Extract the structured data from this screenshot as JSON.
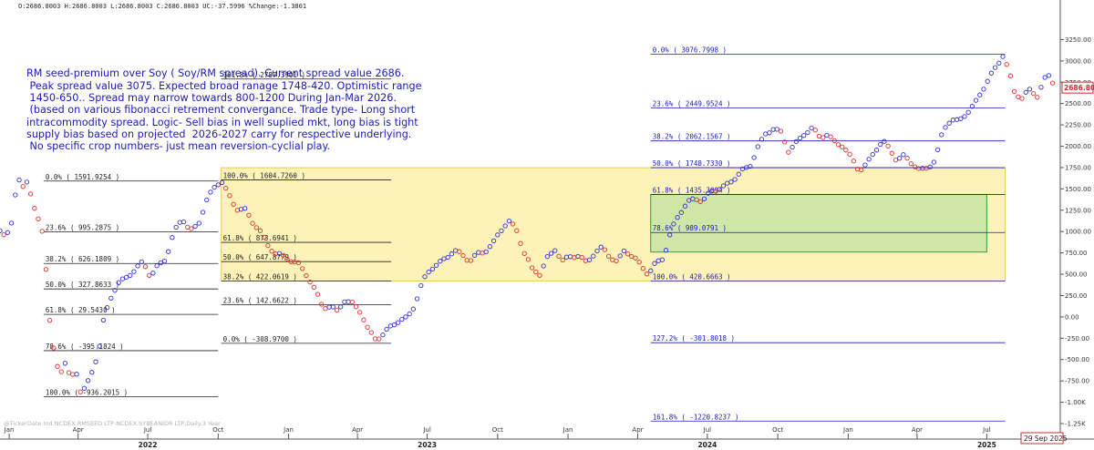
{
  "header": {
    "ohlc_readout": "O:2686.8003  H:2686.8003  L:2686.8003  C:2686.8003  UC:-37.5996  %Change:-1.3801"
  },
  "watermark": "@TickerDate.Ind.NCDEX.RMSEED LTP-NCDEX.SYBEANIDR LTP,Daily.3 Year",
  "annotation": {
    "lines": [
      "RM seed-premium over Soy ( Soy/RM spread). Current spread value 2686.",
      " Peak spread value 3075. Expected broad ranage 1748-420. Optimistic range",
      " 1450-650.. Spread may narrow towards 800-1200 During Jan-Mar 2026.",
      " (based on various fibonacci retrement convergance. Trade type- Long short",
      "intracommodity spread. Logic- Sell bias in well suplied mkt, long bias is tight",
      "supply bias based on projected  2026-2027 carry for respective underlying.",
      " No specific crop numbers- just mean reversion-cyclial play."
    ],
    "color": "#1a1ab8"
  },
  "chart_data": {
    "type": "scatter",
    "ylim": [
      -1250,
      3500
    ],
    "y_ticks": [
      {
        "value": 3250,
        "label": "3250.00"
      },
      {
        "value": 3000,
        "label": "3000.00"
      },
      {
        "value": 2750,
        "label": "2750.00"
      },
      {
        "value": 2500,
        "label": "2500.00"
      },
      {
        "value": 2250,
        "label": "2250.00"
      },
      {
        "value": 2000,
        "label": "2000.00"
      },
      {
        "value": 1750,
        "label": "1750.00"
      },
      {
        "value": 1500,
        "label": "1500.00"
      },
      {
        "value": 1250,
        "label": "1250.00"
      },
      {
        "value": 1000,
        "label": "1000.00"
      },
      {
        "value": 750,
        "label": "750.00"
      },
      {
        "value": 500,
        "label": "500.00"
      },
      {
        "value": 250,
        "label": "250.00"
      },
      {
        "value": 0,
        "label": "0.00"
      },
      {
        "value": -250,
        "label": "-250.00"
      },
      {
        "value": -500,
        "label": "-500.00"
      },
      {
        "value": -750,
        "label": "-750.00"
      },
      {
        "value": -1000,
        "label": "-1.00K"
      },
      {
        "value": -1250,
        "label": "-1.25K"
      }
    ],
    "x_range": [
      "2021-12-20",
      "2025-10-05"
    ],
    "x_ticks_month": [
      {
        "date": "2022-01-01",
        "label": "Jan"
      },
      {
        "date": "2022-04-01",
        "label": "Apr"
      },
      {
        "date": "2022-07-01",
        "label": "Jul"
      },
      {
        "date": "2022-10-01",
        "label": "Oct"
      },
      {
        "date": "2023-01-01",
        "label": "Jan"
      },
      {
        "date": "2023-04-01",
        "label": "Apr"
      },
      {
        "date": "2023-07-01",
        "label": "Jul"
      },
      {
        "date": "2023-10-01",
        "label": "Oct"
      },
      {
        "date": "2024-01-01",
        "label": "Jan"
      },
      {
        "date": "2024-04-01",
        "label": "Apr"
      },
      {
        "date": "2024-07-01",
        "label": "Jul"
      },
      {
        "date": "2024-10-01",
        "label": "Oct"
      },
      {
        "date": "2025-01-01",
        "label": "Jan"
      },
      {
        "date": "2025-04-01",
        "label": "Apr"
      },
      {
        "date": "2025-07-01",
        "label": "Jul"
      }
    ],
    "x_ticks_year": [
      {
        "date": "2022-07-01",
        "label": "2022"
      },
      {
        "date": "2023-07-01",
        "label": "2023"
      },
      {
        "date": "2024-07-01",
        "label": "2024"
      },
      {
        "date": "2025-07-01",
        "label": "2025"
      }
    ],
    "last_value_label": "2686.80",
    "last_date_label": "29 Sep 2025",
    "series_colors": {
      "up": "#2f2fdc",
      "down": "#e03030"
    },
    "fib_sets": [
      {
        "color": "#222222",
        "levels": [
          {
            "date_start": "2022-02-15",
            "date_end": "2022-10-01",
            "value": 1591.9254,
            "label": "0.0% ( 1591.9254 )"
          },
          {
            "date_start": "2022-02-15",
            "date_end": "2022-10-01",
            "value": 995.2875,
            "label": "23.6% ( 995.2875 )"
          },
          {
            "date_start": "2022-02-15",
            "date_end": "2022-10-01",
            "value": 626.1809,
            "label": "38.2% ( 626.1809 )"
          },
          {
            "date_start": "2022-02-15",
            "date_end": "2022-10-01",
            "value": 327.8633,
            "label": "50.0% ( 327.8633 )"
          },
          {
            "date_start": "2022-02-15",
            "date_end": "2022-10-01",
            "value": 29.543,
            "label": "61.8% ( 29.5430 )"
          },
          {
            "date_start": "2022-02-15",
            "date_end": "2022-10-01",
            "value": -395.1824,
            "label": "78.6% ( -395.1824 )"
          },
          {
            "date_start": "2022-02-15",
            "date_end": "2022-10-01",
            "value": -936.2015,
            "label": "100.0% ( -936.2015 )"
          }
        ]
      },
      {
        "color": "#222222",
        "levels": [
          {
            "date_start": "2022-10-05",
            "date_end": "2023-05-15",
            "value": 2787.3901,
            "label": "161.8% ( 2787.3901 )"
          },
          {
            "date_start": "2022-10-05",
            "date_end": "2023-05-15",
            "value": 1604.726,
            "label": "100.0% ( 1604.7260 )"
          },
          {
            "date_start": "2022-10-05",
            "date_end": "2023-05-15",
            "value": 873.6941,
            "label": "61.8% ( 873.6941 )"
          },
          {
            "date_start": "2022-10-05",
            "date_end": "2023-05-15",
            "value": 647.8779,
            "label": "50.0% ( 647.8779 )"
          },
          {
            "date_start": "2022-10-05",
            "date_end": "2023-05-15",
            "value": 422.0619,
            "label": "38.2% ( 422.0619 )"
          },
          {
            "date_start": "2022-10-05",
            "date_end": "2023-05-15",
            "value": 142.6622,
            "label": "23.6% ( 142.6622 )"
          },
          {
            "date_start": "2022-10-05",
            "date_end": "2023-05-15",
            "value": -308.97,
            "label": "0.0% ( -308.9700 )"
          }
        ]
      },
      {
        "color": "#1a1ab8",
        "levels": [
          {
            "date_start": "2024-04-18",
            "date_end": "2025-07-25",
            "value": 3076.7998,
            "label": "0.0% ( 3076.7998 )"
          },
          {
            "date_start": "2024-04-18",
            "date_end": "2025-07-25",
            "value": 2449.9524,
            "label": "23.6% ( 2449.9524 )"
          },
          {
            "date_start": "2024-04-18",
            "date_end": "2025-07-25",
            "value": 2062.1567,
            "label": "38.2% ( 2062.1567 )"
          },
          {
            "date_start": "2024-04-18",
            "date_end": "2025-07-25",
            "value": 1748.733,
            "label": "50.0% ( 1748.7330 )"
          },
          {
            "date_start": "2024-04-18",
            "date_end": "2025-07-25",
            "value": 1435.3094,
            "label": "61.8% ( 1435.3094 )"
          },
          {
            "date_start": "2024-04-18",
            "date_end": "2025-07-25",
            "value": 989.0791,
            "label": "78.6% ( 989.0791 )"
          },
          {
            "date_start": "2024-04-18",
            "date_end": "2025-07-25",
            "value": 420.6663,
            "label": "100.0% ( 420.6663 )"
          },
          {
            "date_start": "2024-04-18",
            "date_end": "2025-07-25",
            "value": -301.8018,
            "label": "127.2% ( -301.8018 )"
          },
          {
            "date_start": "2024-04-18",
            "date_end": "2025-07-25",
            "value": -1220.8237,
            "label": "161.8% ( -1220.8237 )"
          }
        ]
      }
    ],
    "zones": [
      {
        "date_start": "2022-10-05",
        "date_end": "2025-07-25",
        "y_low": 420,
        "y_high": 1748,
        "fill": "#fdf3b9",
        "stroke": "#e8c85a"
      },
      {
        "date_start": "2024-04-18",
        "date_end": "2025-07-01",
        "y_low": 760,
        "y_high": 1435,
        "fill": "#cfe6a9",
        "stroke": "#3c9a3c"
      }
    ],
    "anchors": [
      [
        "2021-12-20",
        1000
      ],
      [
        "2021-12-28",
        950
      ],
      [
        "2022-01-05",
        1100
      ],
      [
        "2022-01-12",
        1650
      ],
      [
        "2022-01-18",
        1550
      ],
      [
        "2022-01-25",
        1600
      ],
      [
        "2022-02-01",
        1300
      ],
      [
        "2022-02-08",
        1150
      ],
      [
        "2022-02-15",
        950
      ],
      [
        "2022-02-22",
        0
      ],
      [
        "2022-03-01",
        -420
      ],
      [
        "2022-03-08",
        -650
      ],
      [
        "2022-03-15",
        -550
      ],
      [
        "2022-03-22",
        -720
      ],
      [
        "2022-03-29",
        -620
      ],
      [
        "2022-04-05",
        -930
      ],
      [
        "2022-04-12",
        -800
      ],
      [
        "2022-04-20",
        -600
      ],
      [
        "2022-04-28",
        -400
      ],
      [
        "2022-05-05",
        0
      ],
      [
        "2022-05-15",
        250
      ],
      [
        "2022-05-25",
        400
      ],
      [
        "2022-06-05",
        500
      ],
      [
        "2022-06-15",
        550
      ],
      [
        "2022-06-25",
        650
      ],
      [
        "2022-07-05",
        450
      ],
      [
        "2022-07-15",
        620
      ],
      [
        "2022-07-25",
        700
      ],
      [
        "2022-08-05",
        1000
      ],
      [
        "2022-08-15",
        1150
      ],
      [
        "2022-08-25",
        1000
      ],
      [
        "2022-09-05",
        1100
      ],
      [
        "2022-09-15",
        1350
      ],
      [
        "2022-09-25",
        1500
      ],
      [
        "2022-10-05",
        1590
      ],
      [
        "2022-10-15",
        1430
      ],
      [
        "2022-10-25",
        1280
      ],
      [
        "2022-11-05",
        1250
      ],
      [
        "2022-11-15",
        1100
      ],
      [
        "2022-11-25",
        1000
      ],
      [
        "2022-12-05",
        850
      ],
      [
        "2022-12-15",
        750
      ],
      [
        "2022-12-25",
        700
      ],
      [
        "2023-01-05",
        650
      ],
      [
        "2023-01-15",
        620
      ],
      [
        "2023-01-25",
        500
      ],
      [
        "2023-02-05",
        300
      ],
      [
        "2023-02-15",
        100
      ],
      [
        "2023-02-25",
        120
      ],
      [
        "2023-03-05",
        80
      ],
      [
        "2023-03-15",
        200
      ],
      [
        "2023-03-25",
        150
      ],
      [
        "2023-04-05",
        50
      ],
      [
        "2023-04-15",
        -150
      ],
      [
        "2023-04-25",
        -250
      ],
      [
        "2023-05-05",
        -200
      ],
      [
        "2023-05-15",
        -120
      ],
      [
        "2023-05-25",
        -50
      ],
      [
        "2023-06-05",
        0
      ],
      [
        "2023-06-15",
        150
      ],
      [
        "2023-06-25",
        400
      ],
      [
        "2023-07-05",
        550
      ],
      [
        "2023-07-15",
        620
      ],
      [
        "2023-07-25",
        700
      ],
      [
        "2023-08-05",
        780
      ],
      [
        "2023-08-15",
        720
      ],
      [
        "2023-08-25",
        650
      ],
      [
        "2023-09-05",
        750
      ],
      [
        "2023-09-15",
        780
      ],
      [
        "2023-09-25",
        850
      ],
      [
        "2023-10-05",
        1000
      ],
      [
        "2023-10-15",
        1130
      ],
      [
        "2023-10-25",
        1050
      ],
      [
        "2023-11-05",
        750
      ],
      [
        "2023-11-15",
        550
      ],
      [
        "2023-11-25",
        500
      ],
      [
        "2023-12-05",
        700
      ],
      [
        "2023-12-15",
        800
      ],
      [
        "2023-12-25",
        650
      ],
      [
        "2024-01-05",
        700
      ],
      [
        "2024-01-15",
        720
      ],
      [
        "2024-01-25",
        650
      ],
      [
        "2024-02-05",
        750
      ],
      [
        "2024-02-15",
        800
      ],
      [
        "2024-02-25",
        700
      ],
      [
        "2024-03-05",
        650
      ],
      [
        "2024-03-15",
        800
      ],
      [
        "2024-03-25",
        700
      ],
      [
        "2024-04-05",
        600
      ],
      [
        "2024-04-15",
        500
      ],
      [
        "2024-04-25",
        650
      ],
      [
        "2024-05-05",
        700
      ],
      [
        "2024-05-15",
        1000
      ],
      [
        "2024-05-25",
        1200
      ],
      [
        "2024-06-05",
        1350
      ],
      [
        "2024-06-15",
        1400
      ],
      [
        "2024-06-25",
        1350
      ],
      [
        "2024-07-05",
        1450
      ],
      [
        "2024-07-15",
        1500
      ],
      [
        "2024-07-25",
        1550
      ],
      [
        "2024-08-05",
        1620
      ],
      [
        "2024-08-15",
        1700
      ],
      [
        "2024-08-25",
        1750
      ],
      [
        "2024-09-05",
        2000
      ],
      [
        "2024-09-15",
        2150
      ],
      [
        "2024-09-25",
        2200
      ],
      [
        "2024-10-05",
        2150
      ],
      [
        "2024-10-15",
        1950
      ],
      [
        "2024-10-25",
        2050
      ],
      [
        "2024-11-05",
        2150
      ],
      [
        "2024-11-15",
        2200
      ],
      [
        "2024-11-25",
        2100
      ],
      [
        "2024-12-05",
        2150
      ],
      [
        "2024-12-15",
        2050
      ],
      [
        "2024-12-25",
        2000
      ],
      [
        "2025-01-05",
        1850
      ],
      [
        "2025-01-15",
        1720
      ],
      [
        "2025-01-25",
        1800
      ],
      [
        "2025-02-05",
        1950
      ],
      [
        "2025-02-15",
        2050
      ],
      [
        "2025-02-25",
        1950
      ],
      [
        "2025-03-05",
        1850
      ],
      [
        "2025-03-15",
        1900
      ],
      [
        "2025-03-25",
        1800
      ],
      [
        "2025-04-05",
        1700
      ],
      [
        "2025-04-15",
        1750
      ],
      [
        "2025-04-25",
        1850
      ],
      [
        "2025-05-05",
        2200
      ],
      [
        "2025-05-15",
        2300
      ],
      [
        "2025-05-25",
        2280
      ],
      [
        "2025-06-05",
        2400
      ],
      [
        "2025-06-15",
        2500
      ],
      [
        "2025-06-25",
        2650
      ],
      [
        "2025-07-05",
        2800
      ],
      [
        "2025-07-15",
        2950
      ],
      [
        "2025-07-22",
        3076
      ],
      [
        "2025-07-30",
        2900
      ],
      [
        "2025-08-05",
        2650
      ],
      [
        "2025-08-15",
        2550
      ],
      [
        "2025-08-25",
        2650
      ],
      [
        "2025-09-05",
        2600
      ],
      [
        "2025-09-12",
        2750
      ],
      [
        "2025-09-18",
        2850
      ],
      [
        "2025-09-23",
        2780
      ],
      [
        "2025-09-29",
        2686
      ]
    ]
  }
}
